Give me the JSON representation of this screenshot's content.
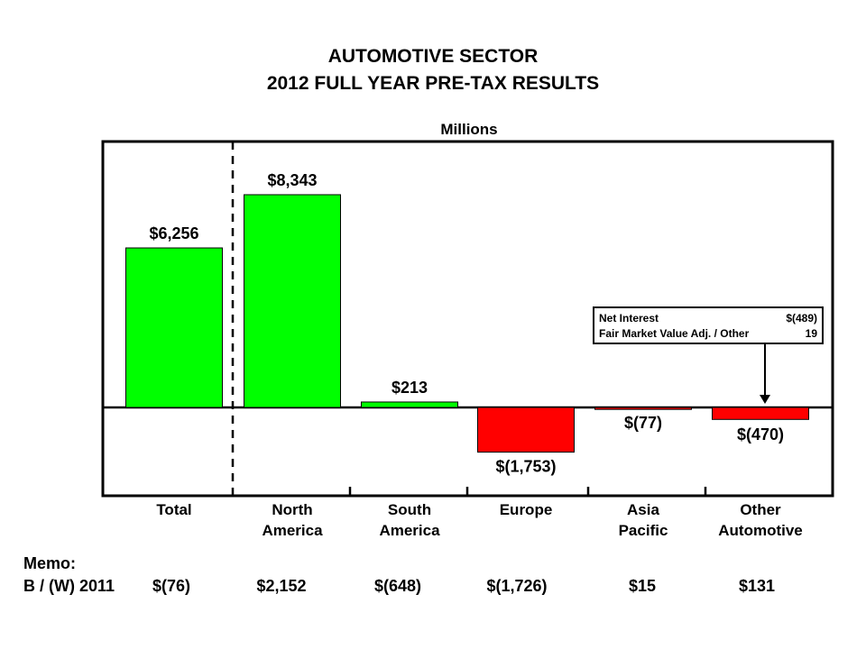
{
  "title_line1": "AUTOMOTIVE SECTOR",
  "title_line2": "2012 FULL YEAR PRE-TAX RESULTS",
  "units": "Millions",
  "chart_data": {
    "type": "bar",
    "title": "AUTOMOTIVE SECTOR 2012 FULL YEAR PRE-TAX RESULTS",
    "ylabel": "Millions",
    "categories": [
      "Total",
      "North America",
      "South America",
      "Europe",
      "Asia Pacific",
      "Other Automotive"
    ],
    "category_lines": [
      [
        "Total"
      ],
      [
        "North",
        "America"
      ],
      [
        "South",
        "America"
      ],
      [
        "Europe"
      ],
      [
        "Asia",
        "Pacific"
      ],
      [
        "Other",
        "Automotive"
      ]
    ],
    "values": [
      6256,
      8343,
      213,
      -1753,
      -77,
      -470
    ],
    "data_labels": [
      "$6,256",
      "$8,343",
      "$213",
      "$(1,753)",
      "$(77)",
      "$(470)"
    ],
    "ylim": [
      -3400,
      10500
    ],
    "positive_color": "#00ff00",
    "negative_color": "#ff0000",
    "grid": false
  },
  "callout": {
    "rows": [
      {
        "label": "Net Interest",
        "value": "$(489)"
      },
      {
        "label": "Fair Market Value Adj. / Other",
        "value": "19"
      }
    ]
  },
  "memo": {
    "label": "Memo:",
    "row_label": "B / (W) 2011",
    "values": [
      "$(76)",
      "$2,152",
      "$(648)",
      "$(1,726)",
      "$15",
      "$131"
    ]
  }
}
